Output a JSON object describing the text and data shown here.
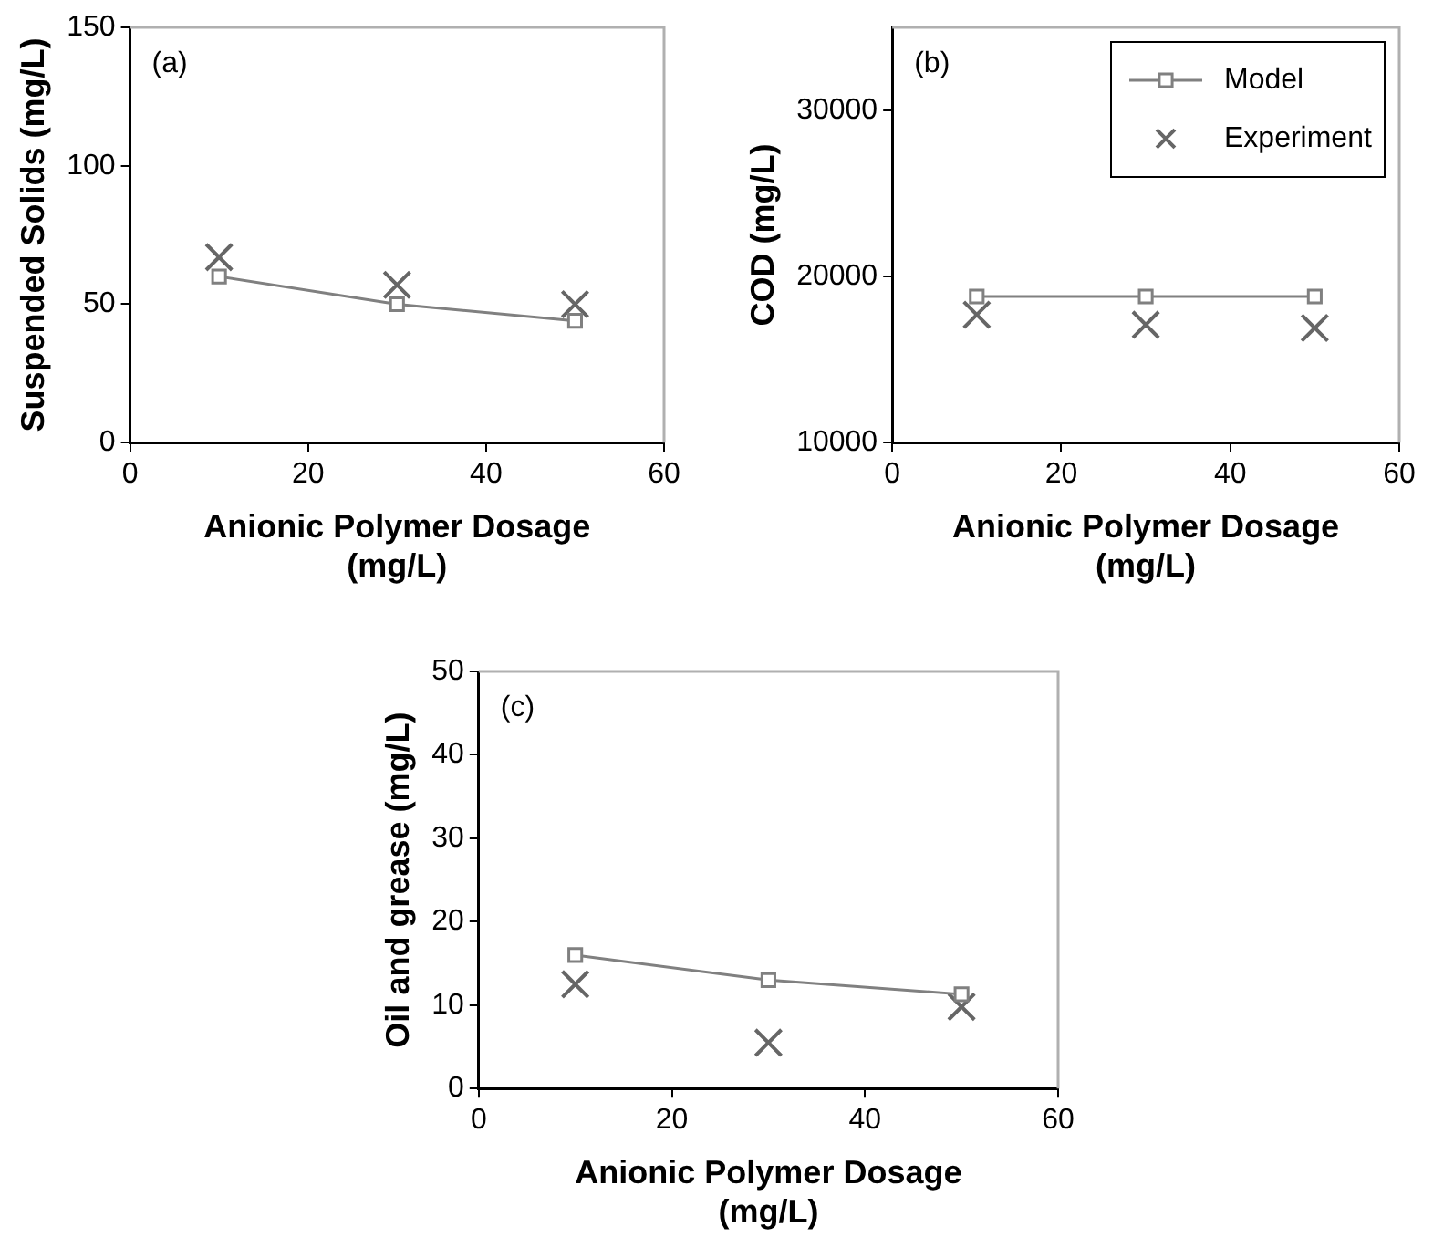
{
  "chart_data": [
    {
      "type": "line",
      "xlabel": "Anionic Polymer Dosage (mg/L)",
      "ylabel": "Suspended Solids (mg/L)",
      "annotations": [
        "(a)"
      ],
      "xlim": [
        0,
        60
      ],
      "xticks": [
        0,
        20,
        40,
        60
      ],
      "ylim": [
        0,
        150
      ],
      "yticks": [
        0,
        50,
        100,
        150
      ],
      "grid": false,
      "legend": false,
      "series": [
        {
          "type": "line",
          "color": "#808080",
          "marker": "square",
          "line_style": "solid",
          "x": [
            10,
            30,
            50
          ],
          "values": [
            60,
            50,
            44
          ]
        },
        {
          "type": "scatter",
          "color": "#666666",
          "marker": "cross",
          "x": [
            10,
            30,
            50
          ],
          "values": [
            67,
            57,
            50
          ]
        }
      ]
    },
    {
      "type": "line",
      "xlabel": "Anionic Polymer Dosage (mg/L)",
      "ylabel": "COD (mg/L)",
      "annotations": [
        "(b)"
      ],
      "xlim": [
        0,
        60
      ],
      "xticks": [
        0,
        20,
        40,
        60
      ],
      "ylim": [
        10000,
        35000
      ],
      "yticks": [
        10000,
        20000,
        30000
      ],
      "grid": false,
      "legend": "top right",
      "series": [
        {
          "type": "line",
          "name": "Model",
          "color": "#808080",
          "marker": "square",
          "line_style": "solid",
          "x": [
            10,
            30,
            50
          ],
          "values": [
            18800,
            18800,
            18800
          ]
        },
        {
          "type": "scatter",
          "name": "Experiment",
          "color": "#666666",
          "marker": "cross",
          "x": [
            10,
            30,
            50
          ],
          "values": [
            17700,
            17100,
            16900
          ]
        }
      ]
    },
    {
      "type": "line",
      "xlabel": "Anionic Polymer Dosage (mg/L)",
      "ylabel": "Oil and grease (mg/L)",
      "annotations": [
        "(c)"
      ],
      "xlim": [
        0,
        60
      ],
      "xticks": [
        0,
        20,
        40,
        60
      ],
      "ylim": [
        0,
        50
      ],
      "yticks": [
        0,
        10,
        20,
        30,
        40,
        50
      ],
      "grid": false,
      "legend": false,
      "series": [
        {
          "type": "line",
          "color": "#808080",
          "marker": "square",
          "line_style": "solid",
          "x": [
            10,
            30,
            50
          ],
          "values": [
            16,
            13,
            11.3
          ]
        },
        {
          "type": "scatter",
          "color": "#666666",
          "marker": "cross",
          "x": [
            10,
            30,
            50
          ],
          "values": [
            12.5,
            5.5,
            9.8
          ]
        }
      ]
    }
  ]
}
